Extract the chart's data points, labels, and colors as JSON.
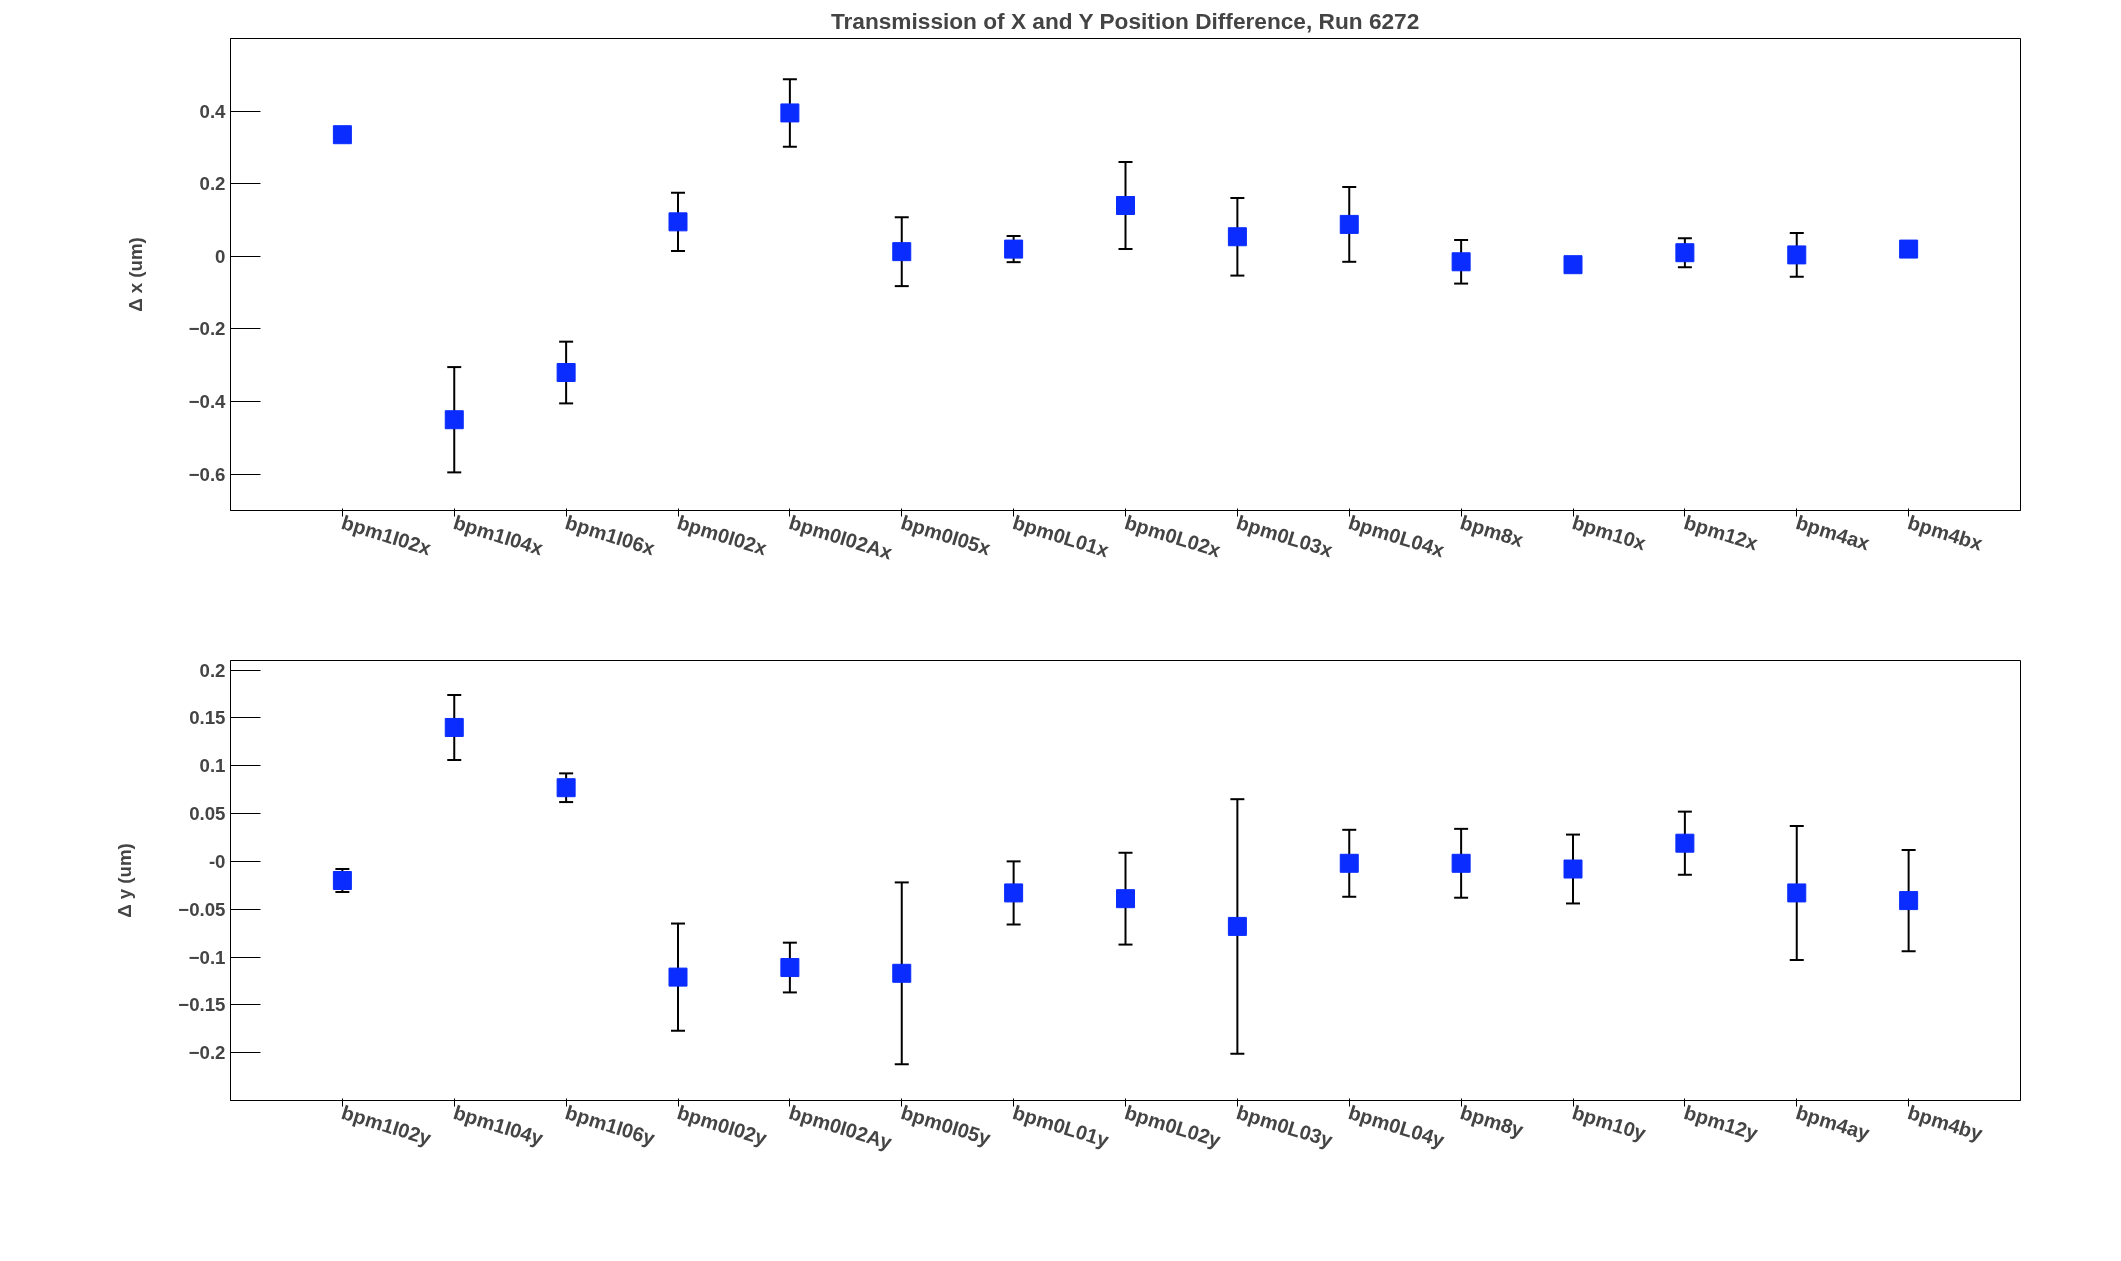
{
  "chart_data": [
    {
      "type": "scatter",
      "title": "Transmission of X and Y Position Difference, Run 6272",
      "ylabel": "Δ x (um)",
      "categories": [
        "bpm1I02x",
        "bpm1I04x",
        "bpm1I06x",
        "bpm0I02x",
        "bpm0I02Ax",
        "bpm0I05x",
        "bpm0L01x",
        "bpm0L02x",
        "bpm0L03x",
        "bpm0L04x",
        "bpm8x",
        "bpm10x",
        "bpm12x",
        "bpm4ax",
        "bpm4bx"
      ],
      "series": [
        {
          "color": "#0a2cff",
          "values": [
            0.335,
            -0.45,
            -0.32,
            0.095,
            0.395,
            0.013,
            0.02,
            0.14,
            0.054,
            0.088,
            -0.015,
            -0.023,
            0.01,
            0.004,
            0.02
          ],
          "errors": [
            null,
            0.145,
            0.085,
            0.08,
            0.093,
            0.095,
            0.036,
            0.12,
            0.107,
            0.103,
            0.06,
            null,
            0.04,
            0.06,
            null
          ]
        }
      ],
      "ylim": [
        -0.7,
        0.6
      ],
      "yticks": [
        -0.6,
        -0.4,
        -0.2,
        0,
        0.2,
        0.4
      ],
      "marker": "square",
      "grid": false
    },
    {
      "type": "scatter",
      "ylabel": "Δ y (um)",
      "categories": [
        "bpm1I02y",
        "bpm1I04y",
        "bpm1I06y",
        "bpm0I02y",
        "bpm0I02Ay",
        "bpm0I05y",
        "bpm0L01y",
        "bpm0L02y",
        "bpm0L03y",
        "bpm0L04y",
        "bpm8y",
        "bpm10y",
        "bpm12y",
        "bpm4ay",
        "bpm4by"
      ],
      "series": [
        {
          "color": "#0a2cff",
          "values": [
            -0.02,
            0.14,
            0.077,
            -0.121,
            -0.111,
            -0.117,
            -0.033,
            -0.039,
            -0.068,
            -0.002,
            -0.002,
            -0.008,
            0.019,
            -0.033,
            -0.041
          ],
          "errors": [
            0.012,
            0.034,
            0.015,
            0.056,
            0.026,
            0.095,
            0.033,
            0.048,
            0.133,
            0.035,
            0.036,
            0.036,
            0.033,
            0.07,
            0.053
          ]
        }
      ],
      "ylim": [
        -0.25,
        0.21
      ],
      "yticks": [
        -0.2,
        -0.15,
        -0.1,
        -0.05,
        {
          "value": 0,
          "label": "-0"
        },
        0.05,
        0.1,
        0.15,
        0.2
      ],
      "marker": "square",
      "grid": false
    }
  ]
}
